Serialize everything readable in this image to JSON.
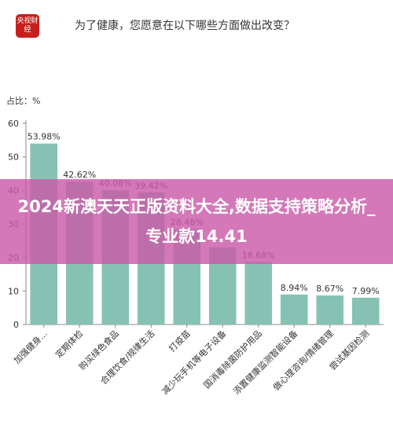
{
  "header": {
    "logo_text": "央视财经",
    "title": "为了健康，您愿意在以下哪些方面做出改变？"
  },
  "overlay": {
    "banner_text": "2024新澳天天正版资料大全,数据支持策略分析_专业款14.41"
  },
  "chart_data": {
    "type": "bar",
    "unit_label": "占比：%",
    "categories": [
      "加强健身...",
      "定期体检",
      "购买绿色食品",
      "合理饮食/规律生活",
      "打疫苗",
      "减少玩手机等电子设备",
      "国消毒除菌防护用品",
      "添置健康监测智能设备",
      "做心理咨询/情绪管理",
      "尝试基因检测"
    ],
    "values": [
      53.98,
      42.62,
      40.08,
      39.42,
      28.46,
      23.0,
      18.68,
      8.94,
      8.67,
      7.99
    ],
    "value_labels": [
      "53.98%",
      "42.62%",
      "40.08%",
      "39.42%",
      "28.46%",
      "",
      "18.68%",
      "8.94%",
      "8.67%",
      "7.99%"
    ],
    "yticks": [
      0,
      10,
      20,
      30,
      40,
      50,
      60
    ],
    "ylim": [
      0,
      60
    ],
    "grid": false,
    "bar_color": "#86c2b3"
  }
}
